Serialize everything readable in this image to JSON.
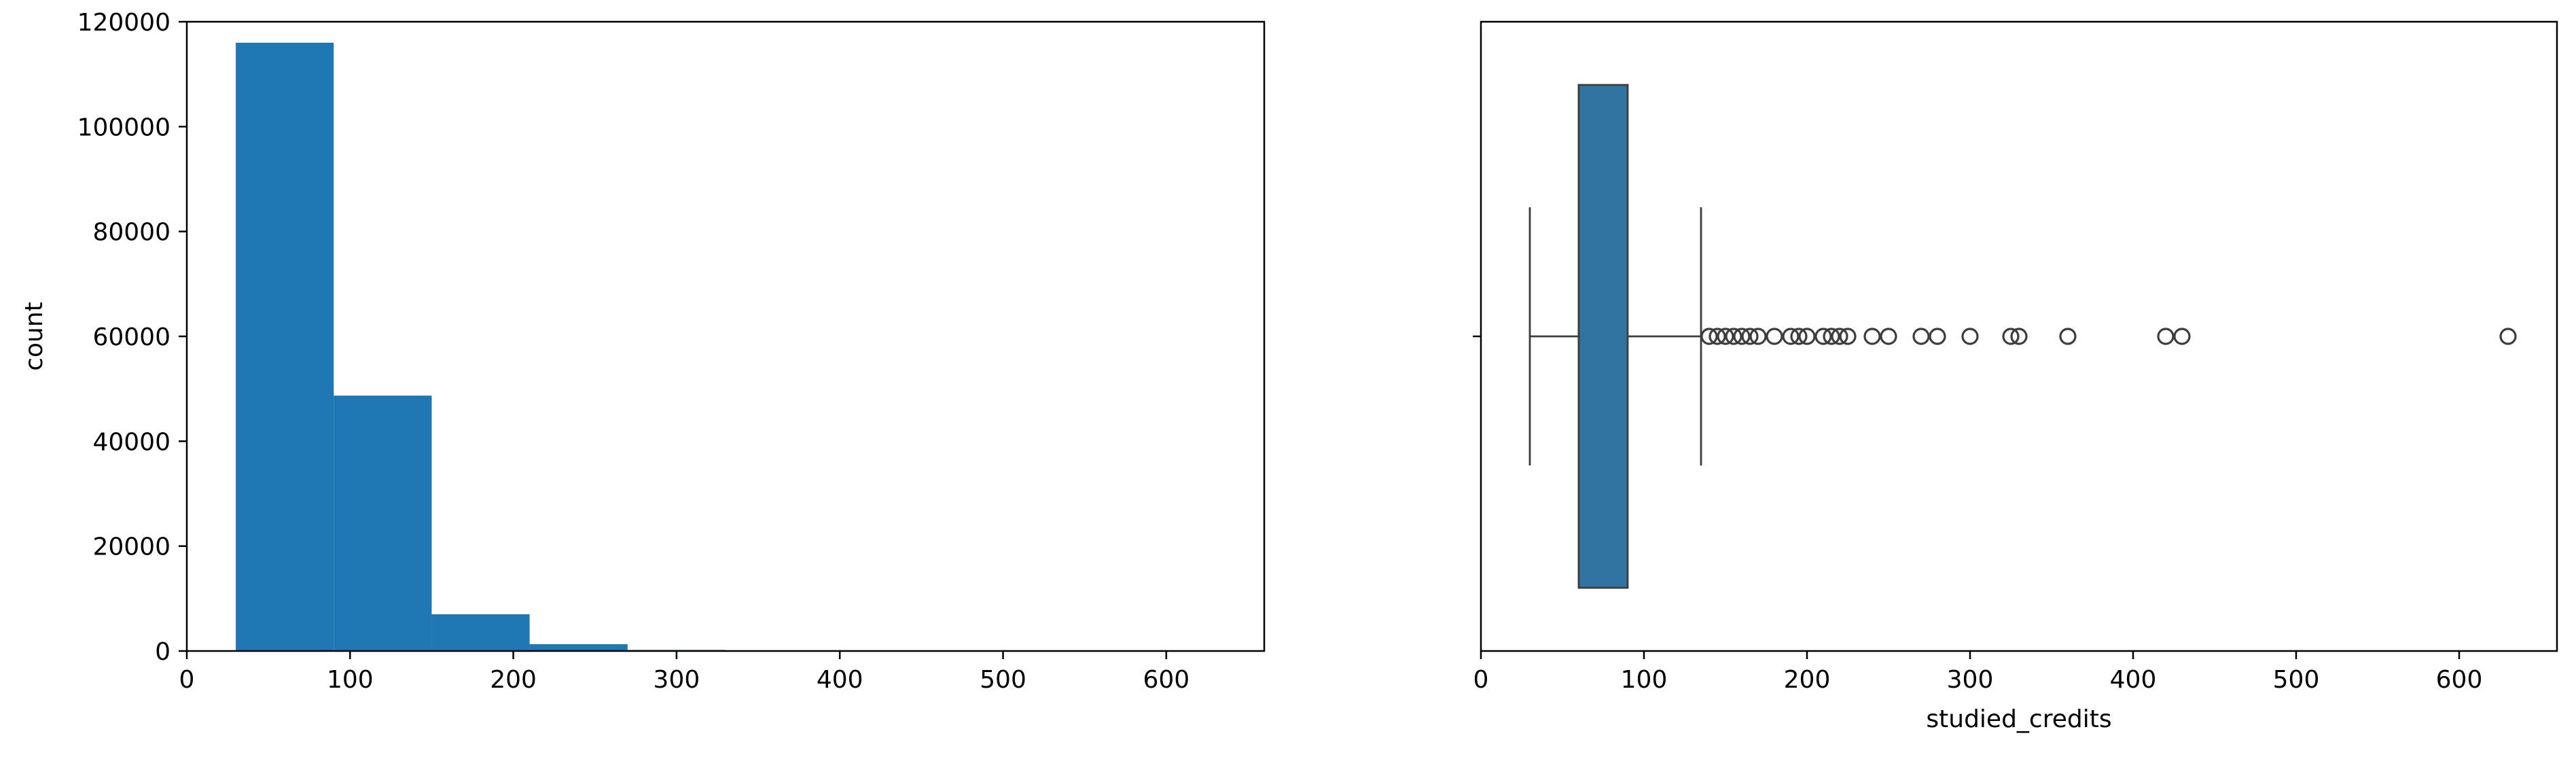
{
  "chart_data": [
    {
      "type": "histogram",
      "xlabel": "",
      "ylabel": "count",
      "xlim": [
        0,
        660
      ],
      "ylim": [
        0,
        120000
      ],
      "xticks": [
        0,
        100,
        200,
        300,
        400,
        500,
        600
      ],
      "yticks": [
        0,
        20000,
        40000,
        60000,
        80000,
        100000,
        120000
      ],
      "bins": [
        {
          "start": 30,
          "end": 90,
          "count": 116000
        },
        {
          "start": 90,
          "end": 150,
          "count": 48700
        },
        {
          "start": 150,
          "end": 210,
          "count": 7000
        },
        {
          "start": 210,
          "end": 270,
          "count": 1300
        },
        {
          "start": 270,
          "end": 330,
          "count": 200
        },
        {
          "start": 330,
          "end": 390,
          "count": 30
        },
        {
          "start": 390,
          "end": 450,
          "count": 30
        },
        {
          "start": 450,
          "end": 510,
          "count": 0
        },
        {
          "start": 510,
          "end": 570,
          "count": 0
        },
        {
          "start": 570,
          "end": 630,
          "count": 5
        }
      ],
      "color": "#1f77b4",
      "grid": false
    },
    {
      "type": "boxplot",
      "orientation": "horizontal",
      "xlabel": "studied_credits",
      "ylabel": "",
      "xlim": [
        0,
        660
      ],
      "xticks": [
        0,
        100,
        200,
        300,
        400,
        500,
        600
      ],
      "whisker_low": 30,
      "q1": 60,
      "median": 60,
      "q3": 90,
      "whisker_high": 135,
      "outliers": [
        140,
        145,
        150,
        155,
        160,
        165,
        170,
        180,
        190,
        195,
        200,
        210,
        215,
        220,
        225,
        240,
        250,
        270,
        280,
        300,
        325,
        330,
        360,
        420,
        430,
        630
      ],
      "box_color": "#3274a1",
      "edge_color": "#3d3d3d",
      "grid": false
    }
  ]
}
